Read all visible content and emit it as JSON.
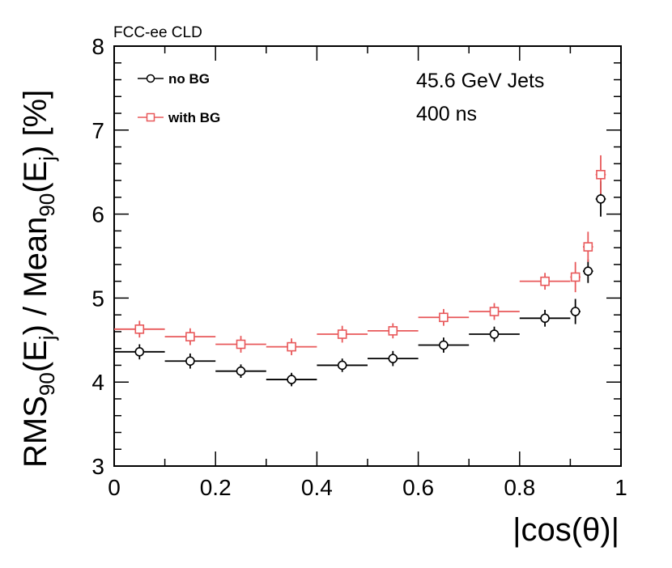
{
  "chart_data": {
    "type": "scatter",
    "experiment_tag": "FCC-ee CLD",
    "annotations": [
      "45.6 GeV Jets",
      "400 ns"
    ],
    "xlabel": "|cos(θ)|",
    "ylabel": {
      "t1": "RMS",
      "s1": "90",
      "t2": "(E",
      "s2": "j",
      "t3": ") / Mean",
      "s3": "90",
      "t4": "(E",
      "s4": "j",
      "t5": ") [%]"
    },
    "xlim": [
      0,
      1
    ],
    "ylim": [
      3,
      8
    ],
    "x_ticks": [
      0,
      0.2,
      0.4,
      0.6,
      0.8,
      1
    ],
    "x_tick_labels": [
      "0",
      "0.2",
      "0.4",
      "0.6",
      "0.8",
      "1"
    ],
    "y_ticks": [
      3,
      4,
      5,
      6,
      7,
      8
    ],
    "y_tick_labels": [
      "3",
      "4",
      "5",
      "6",
      "7",
      "8"
    ],
    "legend": [
      {
        "name": "no BG",
        "marker": "circle",
        "color": "#000000"
      },
      {
        "name": "with BG",
        "marker": "square",
        "color": "#e8585a"
      }
    ],
    "series": [
      {
        "name": "no BG",
        "marker": "circle",
        "color": "#000000",
        "x": [
          0.05,
          0.15,
          0.25,
          0.35,
          0.45,
          0.55,
          0.65,
          0.75,
          0.85,
          0.91,
          0.935,
          0.96
        ],
        "x_low": [
          0.0,
          0.1,
          0.2,
          0.3,
          0.4,
          0.5,
          0.6,
          0.7,
          0.8,
          0.9,
          0.925,
          0.95
        ],
        "x_high": [
          0.1,
          0.2,
          0.3,
          0.4,
          0.5,
          0.6,
          0.7,
          0.8,
          0.9,
          0.92,
          0.945,
          0.97
        ],
        "y": [
          4.36,
          4.25,
          4.13,
          4.03,
          4.2,
          4.28,
          4.44,
          4.57,
          4.76,
          4.84,
          5.32,
          6.18
        ],
        "y_err": [
          0.09,
          0.09,
          0.08,
          0.08,
          0.08,
          0.09,
          0.09,
          0.09,
          0.1,
          0.15,
          0.14,
          0.21
        ]
      },
      {
        "name": "with BG",
        "marker": "square",
        "color": "#e8585a",
        "x": [
          0.05,
          0.15,
          0.25,
          0.35,
          0.45,
          0.55,
          0.65,
          0.75,
          0.85,
          0.91,
          0.935,
          0.96
        ],
        "x_low": [
          0.0,
          0.1,
          0.2,
          0.3,
          0.4,
          0.5,
          0.6,
          0.7,
          0.8,
          0.9,
          0.925,
          0.95
        ],
        "x_high": [
          0.1,
          0.2,
          0.3,
          0.4,
          0.5,
          0.6,
          0.7,
          0.8,
          0.9,
          0.92,
          0.945,
          0.97
        ],
        "y": [
          4.63,
          4.54,
          4.45,
          4.42,
          4.57,
          4.61,
          4.77,
          4.84,
          5.2,
          5.25,
          5.61,
          6.47
        ],
        "y_err": [
          0.1,
          0.1,
          0.1,
          0.1,
          0.1,
          0.09,
          0.1,
          0.1,
          0.1,
          0.18,
          0.18,
          0.23
        ]
      }
    ]
  }
}
